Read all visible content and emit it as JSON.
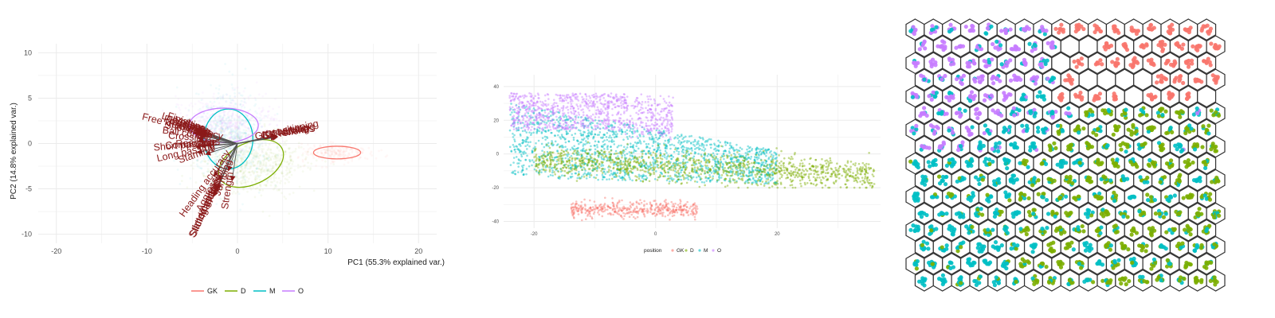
{
  "colors": {
    "GK": "#F8766D",
    "D": "#7CAE00",
    "M": "#00BFC4",
    "O": "#C77CFF",
    "vector": "#8B1A1A",
    "grid": "#ebebeb",
    "hex_border": "#333333"
  },
  "chart_data": [
    {
      "type": "scatter",
      "title": "",
      "xlabel": "PC1 (55.3% explained var.)",
      "ylabel": "PC2 (14.8% explained var.)",
      "xlim": [
        -22,
        22
      ],
      "ylim": [
        -11,
        11
      ],
      "x_ticks": [
        -20,
        -10,
        0,
        10,
        20
      ],
      "y_ticks": [
        -10,
        -5,
        0,
        5,
        10
      ],
      "grid": true,
      "legend": {
        "placement": "bottom",
        "entries": [
          "GK",
          "D",
          "M",
          "O"
        ]
      },
      "groups": [
        {
          "name": "GK",
          "center": [
            11,
            -1
          ],
          "ellipse": {
            "rx": 2.6,
            "ry": 0.7,
            "angle": 0
          }
        },
        {
          "name": "D",
          "center": [
            1.5,
            -2.2
          ],
          "ellipse": {
            "rx": 3.8,
            "ry": 2.3,
            "angle": -25
          }
        },
        {
          "name": "M",
          "center": [
            -1,
            0.5
          ],
          "ellipse": {
            "rx": 2.7,
            "ry": 3.3,
            "angle": 0
          }
        },
        {
          "name": "O",
          "center": [
            -1.5,
            2
          ],
          "ellipse": {
            "rx": 3.8,
            "ry": 1.9,
            "angle": 0
          }
        }
      ],
      "vectors": [
        {
          "label": "Finishing",
          "x": -4.5,
          "y": 1.6
        },
        {
          "label": "Free kick accuracy",
          "x": -4.8,
          "y": 1.2
        },
        {
          "label": "Long shots",
          "x": -4.6,
          "y": 1.5
        },
        {
          "label": "Positioning",
          "x": -4.4,
          "y": 1.3
        },
        {
          "label": "Volleys",
          "x": -4.2,
          "y": 1.4
        },
        {
          "label": "Penalties",
          "x": -4.3,
          "y": 1.1
        },
        {
          "label": "Dribbling",
          "x": -4.1,
          "y": 1.2
        },
        {
          "label": "Curve",
          "x": -4.0,
          "y": 1.0
        },
        {
          "label": "Shot power",
          "x": -4.2,
          "y": 0.9
        },
        {
          "label": "Ball control",
          "x": -4.4,
          "y": 0.6
        },
        {
          "label": "Crossing",
          "x": -4.3,
          "y": 0.3
        },
        {
          "label": "Short passing",
          "x": -4.6,
          "y": -0.4
        },
        {
          "label": "Composure",
          "x": -4.0,
          "y": -0.3
        },
        {
          "label": "Reactions",
          "x": -3.4,
          "y": -0.2
        },
        {
          "label": "Long passing",
          "x": -4.4,
          "y": -1.0
        },
        {
          "label": "Stamina",
          "x": -3.5,
          "y": -1.2
        },
        {
          "label": "Heading accuracy",
          "x": -2.6,
          "y": -3.6
        },
        {
          "label": "Jumping",
          "x": -1.0,
          "y": -3.0
        },
        {
          "label": "Aggression",
          "x": -2.1,
          "y": -4.0
        },
        {
          "label": "Strength",
          "x": -0.6,
          "y": -4.1
        },
        {
          "label": "Standing tackle",
          "x": -2.5,
          "y": -5.5
        },
        {
          "label": "Sliding tackle",
          "x": -2.6,
          "y": -5.8
        },
        {
          "label": "Interceptions",
          "x": -2.4,
          "y": -5.2
        },
        {
          "label": "Marking",
          "x": -2.2,
          "y": -5.0
        },
        {
          "label": "GK diving",
          "x": 4.3,
          "y": 0.8
        },
        {
          "label": "GK handling",
          "x": 4.4,
          "y": 0.8
        },
        {
          "label": "GK kicking",
          "x": 4.2,
          "y": 0.7
        },
        {
          "label": "GK positioning",
          "x": 4.3,
          "y": 0.9
        },
        {
          "label": "GK reflexes",
          "x": 4.4,
          "y": 0.7
        }
      ]
    },
    {
      "type": "scatter",
      "title": "",
      "xlabel": "",
      "ylabel": "",
      "xlim": [
        -25,
        37
      ],
      "ylim": [
        -44,
        47
      ],
      "x_ticks": [
        -20,
        0,
        20
      ],
      "y_ticks": [
        40,
        20,
        0,
        -20,
        -40
      ],
      "grid": true,
      "legend": {
        "placement": "bottom",
        "title": "position",
        "entries": [
          "GK",
          "D",
          "M",
          "O"
        ]
      },
      "clusters": [
        {
          "name": "GK",
          "x_range": [
            -14,
            7
          ],
          "y_range": [
            -39,
            -27
          ]
        },
        {
          "name": "O",
          "x_range": [
            -24,
            3
          ],
          "y_range": [
            14,
            37
          ]
        },
        {
          "name": "M",
          "x_range": [
            -24,
            20
          ],
          "y_range": [
            -20,
            30
          ]
        },
        {
          "name": "D",
          "x_range": [
            -20,
            36
          ],
          "y_range": [
            -20,
            4
          ]
        }
      ]
    },
    {
      "type": "heatmap",
      "subtype": "hexagonal-som",
      "title": "",
      "grid_cols": 17,
      "grid_rows": 16,
      "legend": {
        "placement": "none"
      },
      "regions": [
        {
          "name": "O",
          "cols": [
            0,
            7
          ],
          "rows": [
            0,
            7
          ]
        },
        {
          "name": "GK",
          "cols": [
            8,
            16
          ],
          "rows": [
            0,
            4
          ]
        },
        {
          "name": "M",
          "cols": [
            0,
            16
          ],
          "rows": [
            4,
            15
          ]
        },
        {
          "name": "D",
          "cols": [
            6,
            16
          ],
          "rows": [
            5,
            15
          ]
        }
      ]
    }
  ]
}
